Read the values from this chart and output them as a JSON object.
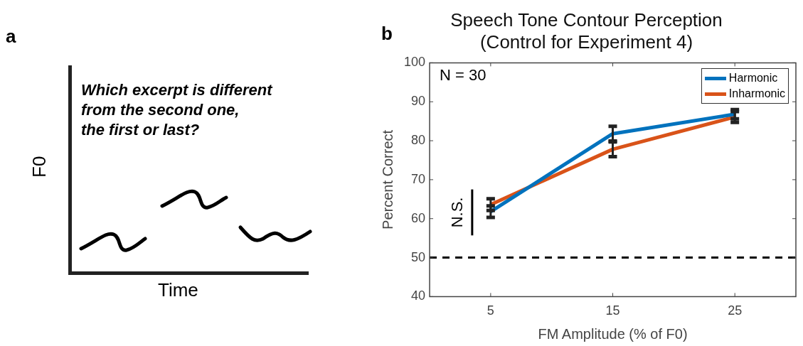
{
  "chart_data": [
    {
      "type": "other",
      "xlabel": "Time",
      "ylabel": "F0",
      "annotations": [
        "a",
        "Which excerpt is different\nfrom the second one,\nthe first or last?"
      ]
    },
    {
      "type": "line",
      "title": "Speech Tone Contour Perception\n(Control for Experiment 4)",
      "xlabel": "FM Amplitude (% of F0)",
      "ylabel": "Percent Correct",
      "x": [
        5,
        15,
        25
      ],
      "xlim": [
        0,
        30
      ],
      "xticks": [
        5,
        15,
        25
      ],
      "ylim": [
        40,
        100
      ],
      "yticks": [
        40,
        50,
        60,
        70,
        80,
        90,
        100
      ],
      "series": [
        {
          "name": "Harmonic",
          "color": "#0072bd",
          "values": [
            61.8,
            81.8,
            86.8
          ],
          "errors": [
            1.5,
            1.9,
            1.2
          ]
        },
        {
          "name": "Inharmonic",
          "color": "#d95319",
          "values": [
            63.6,
            77.8,
            86.1
          ],
          "errors": [
            1.5,
            1.9,
            1.4
          ]
        }
      ],
      "ref_lines": [
        {
          "axis": "y",
          "value": 50,
          "color": "#000000",
          "line_style": "dashed"
        }
      ],
      "legend": "top right",
      "grid": false,
      "line_style": "solid",
      "annotations": [
        "b",
        "N = 30",
        "N.S."
      ]
    }
  ]
}
